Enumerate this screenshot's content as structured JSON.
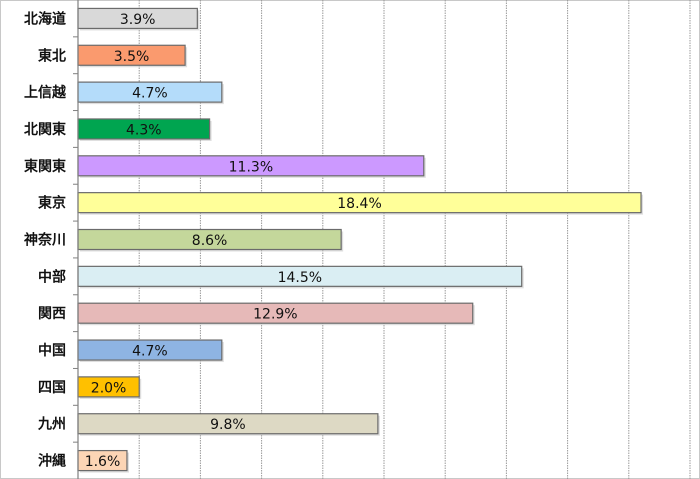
{
  "chart_data": {
    "type": "bar",
    "orientation": "horizontal",
    "title": "",
    "xlabel": "",
    "ylabel": "",
    "xlim": [
      0,
      20
    ],
    "grid": true,
    "legend": "none",
    "categories": [
      "北海道",
      "東北",
      "上信越",
      "北関東",
      "東関東",
      "東京",
      "神奈川",
      "中部",
      "関西",
      "中国",
      "四国",
      "九州",
      "沖縄"
    ],
    "values": [
      3.9,
      3.5,
      4.7,
      4.3,
      11.3,
      18.4,
      8.6,
      14.5,
      12.9,
      4.7,
      2.0,
      9.8,
      1.6
    ],
    "value_labels": [
      "3.9%",
      "3.5%",
      "4.7%",
      "4.3%",
      "11.3%",
      "18.4%",
      "8.6%",
      "14.5%",
      "12.9%",
      "4.7%",
      "2.0%",
      "9.8%",
      "1.6%"
    ],
    "colors": [
      "#d9d9d9",
      "#fa9a6e",
      "#b4dcfa",
      "#00a550",
      "#cc99ff",
      "#ffff99",
      "#c4d79b",
      "#daeef3",
      "#e6b9b8",
      "#8eb4e3",
      "#ffc000",
      "#ddd9c4",
      "#fcd5b5"
    ]
  }
}
